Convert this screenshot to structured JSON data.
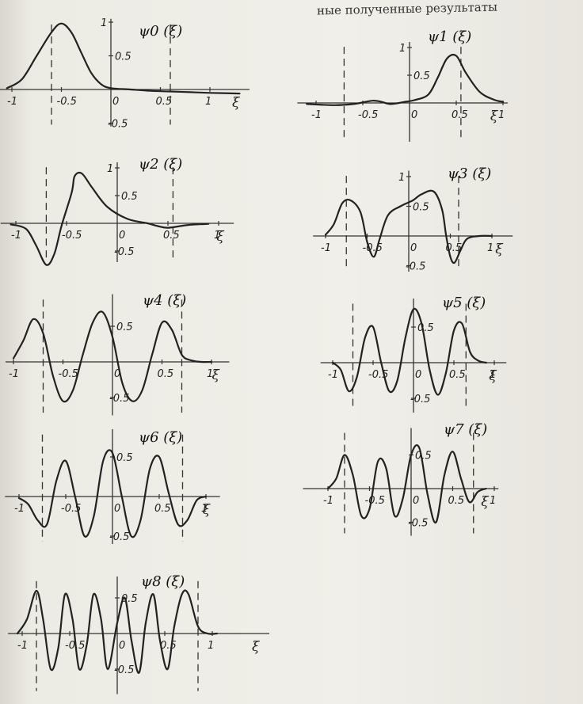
{
  "header_text": "ные полученные результаты",
  "chart_data": [
    {
      "type": "line",
      "title": "ψ0 (ξ)",
      "xlabel": "ξ",
      "n": 0,
      "x_ticks": [
        "-1",
        "-0.5",
        "0",
        "0.5",
        "1"
      ],
      "y_ticks": [
        "1",
        "0.5",
        "-0.5"
      ],
      "boundary_lines": [
        -0.6,
        0.6
      ],
      "x": [
        -1.05,
        -0.9,
        -0.75,
        -0.6,
        -0.5,
        -0.4,
        -0.3,
        -0.2,
        -0.1,
        0,
        0.2,
        0.4,
        0.6,
        0.8,
        1.0,
        1.3
      ],
      "y": [
        0.02,
        0.15,
        0.5,
        0.85,
        0.98,
        0.85,
        0.55,
        0.25,
        0.08,
        0.02,
        0.0,
        -0.02,
        -0.03,
        -0.04,
        -0.05,
        -0.06
      ]
    },
    {
      "type": "line",
      "title": "ψ1 (ξ)",
      "xlabel": "ξ",
      "n": 1,
      "x_ticks": [
        "-1",
        "-0.5",
        "0",
        "0.5",
        "1"
      ],
      "y_ticks": [
        "1",
        "0.5"
      ],
      "boundary_lines": [
        -0.7,
        0.55
      ],
      "x": [
        -1.1,
        -0.8,
        -0.6,
        -0.4,
        -0.3,
        -0.2,
        -0.05,
        0.05,
        0.2,
        0.3,
        0.4,
        0.5,
        0.6,
        0.75,
        0.9,
        1.0
      ],
      "y": [
        -0.02,
        -0.04,
        -0.02,
        0.04,
        0.02,
        -0.02,
        0.02,
        0.05,
        0.15,
        0.45,
        0.8,
        0.85,
        0.55,
        0.2,
        0.06,
        0.02
      ]
    },
    {
      "type": "line",
      "title": "ψ2 (ξ)",
      "xlabel": "ξ",
      "n": 2,
      "x_ticks": [
        "-1",
        "-0.5",
        "0",
        "0.5",
        "1"
      ],
      "y_ticks": [
        "1",
        "0.5",
        "-0.5"
      ],
      "boundary_lines": [
        -0.7,
        0.55
      ],
      "x": [
        -1.05,
        -0.9,
        -0.8,
        -0.7,
        -0.62,
        -0.55,
        -0.45,
        -0.42,
        -0.35,
        -0.25,
        -0.1,
        0.1,
        0.3,
        0.4,
        0.5,
        0.7,
        0.9
      ],
      "y": [
        -0.02,
        -0.1,
        -0.4,
        -0.75,
        -0.55,
        -0.05,
        0.55,
        0.85,
        0.9,
        0.65,
        0.3,
        0.08,
        0.0,
        -0.05,
        -0.08,
        -0.03,
        -0.01
      ]
    },
    {
      "type": "line",
      "title": "ψ3 (ξ)",
      "xlabel": "ξ",
      "n": 3,
      "x_ticks": [
        "-1",
        "-0.5",
        "0",
        "0.5",
        "1"
      ],
      "y_ticks": [
        "1",
        "0.5",
        "-0.5"
      ],
      "boundary_lines": [
        -0.75,
        0.6
      ],
      "x": [
        -1.0,
        -0.9,
        -0.8,
        -0.7,
        -0.58,
        -0.5,
        -0.42,
        -0.35,
        -0.25,
        -0.1,
        0.05,
        0.15,
        0.3,
        0.4,
        0.45,
        0.5,
        0.55,
        0.62,
        0.7,
        0.85,
        1.0
      ],
      "y": [
        0.02,
        0.2,
        0.55,
        0.6,
        0.4,
        -0.1,
        -0.35,
        -0.05,
        0.35,
        0.5,
        0.6,
        0.7,
        0.75,
        0.45,
        0.0,
        -0.35,
        -0.45,
        -0.25,
        -0.05,
        0.0,
        0.0
      ]
    },
    {
      "type": "line",
      "title": "ψ4 (ξ)",
      "xlabel": "ξ",
      "n": 4,
      "x_ticks": [
        "-1",
        "-0.5",
        "0",
        "0.5",
        "1"
      ],
      "y_ticks": [
        "1",
        "0.5",
        "-0.5"
      ],
      "boundary_lines": [
        -0.7,
        0.7
      ],
      "x": [
        -1.0,
        -0.9,
        -0.8,
        -0.7,
        -0.6,
        -0.5,
        -0.4,
        -0.3,
        -0.2,
        -0.1,
        0.0,
        0.1,
        0.2,
        0.3,
        0.4,
        0.5,
        0.6,
        0.7,
        0.8,
        0.9,
        1.0
      ],
      "y": [
        0.05,
        0.3,
        0.6,
        0.4,
        -0.2,
        -0.55,
        -0.4,
        0.1,
        0.55,
        0.7,
        0.35,
        -0.3,
        -0.55,
        -0.4,
        0.1,
        0.55,
        0.45,
        0.1,
        0.02,
        0.0,
        0.0
      ]
    },
    {
      "type": "line",
      "title": "ψ5 (ξ)",
      "xlabel": "ξ",
      "n": 5,
      "x_ticks": [
        "-1",
        "-0.5",
        "0",
        "0.5",
        "1"
      ],
      "y_ticks": [
        "0.5",
        "-0.5"
      ],
      "boundary_lines": [
        -0.75,
        0.65
      ],
      "x": [
        -1.0,
        -0.9,
        -0.8,
        -0.7,
        -0.6,
        -0.5,
        -0.4,
        -0.3,
        -0.2,
        -0.1,
        0.0,
        0.1,
        0.2,
        0.3,
        0.4,
        0.5,
        0.6,
        0.7,
        0.8,
        0.9
      ],
      "y": [
        0.0,
        -0.1,
        -0.4,
        -0.2,
        0.35,
        0.5,
        0.0,
        -0.4,
        -0.25,
        0.35,
        0.75,
        0.55,
        -0.1,
        -0.45,
        -0.15,
        0.45,
        0.55,
        0.15,
        0.03,
        0.0
      ]
    },
    {
      "type": "line",
      "title": "ψ6 (ξ)",
      "xlabel": "ξ",
      "n": 6,
      "x_ticks": [
        "-1",
        "-0.5",
        "0",
        "0.5",
        "1"
      ],
      "y_ticks": [
        "1",
        "0.5",
        "-0.5"
      ],
      "boundary_lines": [
        -0.75,
        0.75
      ],
      "x": [
        -1.0,
        -0.9,
        -0.8,
        -0.7,
        -0.6,
        -0.5,
        -0.4,
        -0.3,
        -0.2,
        -0.1,
        0.0,
        0.1,
        0.2,
        0.3,
        0.4,
        0.5,
        0.6,
        0.7,
        0.8,
        0.9,
        1.0
      ],
      "y": [
        -0.02,
        -0.1,
        -0.3,
        -0.35,
        0.2,
        0.45,
        0.0,
        -0.5,
        -0.25,
        0.45,
        0.55,
        0.0,
        -0.5,
        -0.3,
        0.35,
        0.5,
        0.05,
        -0.35,
        -0.3,
        -0.05,
        0.0
      ]
    },
    {
      "type": "line",
      "title": "ψ7 (ξ)",
      "xlabel": "ξ",
      "n": 7,
      "x_ticks": [
        "-1",
        "-0.5",
        "0",
        "0.5",
        "1"
      ],
      "y_ticks": [
        "1",
        "0.5",
        "-0.5"
      ],
      "boundary_lines": [
        -0.8,
        0.75
      ],
      "x": [
        -1.0,
        -0.9,
        -0.8,
        -0.7,
        -0.6,
        -0.5,
        -0.4,
        -0.3,
        -0.2,
        -0.1,
        0.0,
        0.1,
        0.2,
        0.3,
        0.4,
        0.5,
        0.6,
        0.7,
        0.8,
        0.9
      ],
      "y": [
        0.0,
        0.15,
        0.5,
        0.2,
        -0.4,
        -0.3,
        0.4,
        0.3,
        -0.4,
        -0.15,
        0.5,
        0.6,
        -0.1,
        -0.5,
        0.2,
        0.55,
        0.15,
        -0.2,
        -0.05,
        0.0
      ]
    },
    {
      "type": "line",
      "title": "ψ8 (ξ)",
      "xlabel": "ξ",
      "n": 8,
      "x_ticks": [
        "-1",
        "-0.5",
        "0",
        "0.5",
        "1"
      ],
      "y_ticks": [
        "1",
        "0.5",
        "-0.5"
      ],
      "boundary_lines": [
        -0.85,
        0.85
      ],
      "x": [
        -1.05,
        -0.95,
        -0.85,
        -0.78,
        -0.7,
        -0.62,
        -0.55,
        -0.47,
        -0.4,
        -0.32,
        -0.25,
        -0.17,
        -0.1,
        0.0,
        0.08,
        0.15,
        0.23,
        0.3,
        0.38,
        0.45,
        0.53,
        0.6,
        0.68,
        0.75,
        0.85,
        0.95,
        1.05
      ],
      "y": [
        0.0,
        0.2,
        0.6,
        0.2,
        -0.5,
        -0.2,
        0.55,
        0.2,
        -0.5,
        -0.15,
        0.55,
        0.2,
        -0.5,
        0.15,
        0.5,
        -0.1,
        -0.55,
        0.15,
        0.55,
        -0.1,
        -0.5,
        0.1,
        0.55,
        0.55,
        0.1,
        0.0,
        0.0
      ]
    }
  ]
}
